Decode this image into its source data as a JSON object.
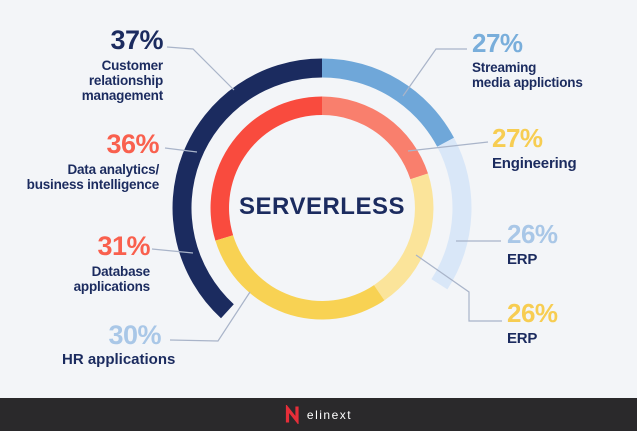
{
  "chart_data": {
    "type": "donut",
    "title": "SERVERLESS",
    "center_label": "SERVERLESS",
    "note": "decorative double-ring donut; callout percentages around chart",
    "items": [
      {
        "pct": "37%",
        "value": 37,
        "lines": [
          "Customer",
          "relationship",
          "management"
        ],
        "color": "#1b2b5f"
      },
      {
        "pct": "36%",
        "value": 36,
        "lines": [
          "Data analytics/",
          "business intelligence"
        ],
        "color": "#f9604e"
      },
      {
        "pct": "31%",
        "value": 31,
        "lines": [
          "Database",
          "applications"
        ],
        "color": "#f9604e"
      },
      {
        "pct": "30%",
        "value": 30,
        "lines": [
          "HR applications"
        ],
        "color": "#a9c7e7"
      },
      {
        "pct": "27%",
        "value": 27,
        "lines": [
          "Streaming",
          "media applictions"
        ],
        "color": "#79aedb"
      },
      {
        "pct": "27%",
        "value": 27,
        "lines": [
          "Engineering"
        ],
        "color": "#f7cd52"
      },
      {
        "pct": "26%",
        "value": 26,
        "lines": [
          "ERP"
        ],
        "color": "#a9c7e7"
      },
      {
        "pct": "26%",
        "value": 26,
        "lines": [
          "ERP"
        ],
        "color": "#f7cd52"
      }
    ],
    "rings": [
      {
        "name": "outer",
        "r_inner": 130.5,
        "r_outer": 149.5,
        "segments": [
          {
            "name": "navy",
            "color": "#1b2b5f",
            "start": 222.5,
            "end": 360
          },
          {
            "name": "medium-blue",
            "color": "#6fa7d9",
            "start": 0,
            "end": 62
          },
          {
            "name": "pale-blue",
            "color": "#d9e7f8",
            "start": 62,
            "end": 123
          }
        ]
      },
      {
        "name": "inner",
        "r_inner": 93,
        "r_outer": 111.5,
        "segments": [
          {
            "name": "red",
            "color": "#f94b3e",
            "start": 253,
            "end": 360
          },
          {
            "name": "salmon",
            "color": "#f97f6d",
            "start": 0,
            "end": 72
          },
          {
            "name": "light-yellow",
            "color": "#fbe49a",
            "start": 72,
            "end": 146
          },
          {
            "name": "yellow",
            "color": "#f8d253",
            "start": 146,
            "end": 253
          }
        ]
      }
    ]
  },
  "footer": {
    "brand": "elinext"
  },
  "colors": {
    "background": "#f3f5f8",
    "navy_text": "#1b2b5f",
    "leader_line": "#a9b4c9",
    "footer_bg": "#2a292b",
    "logo_red": "#e62e39",
    "white": "#ffffff"
  }
}
